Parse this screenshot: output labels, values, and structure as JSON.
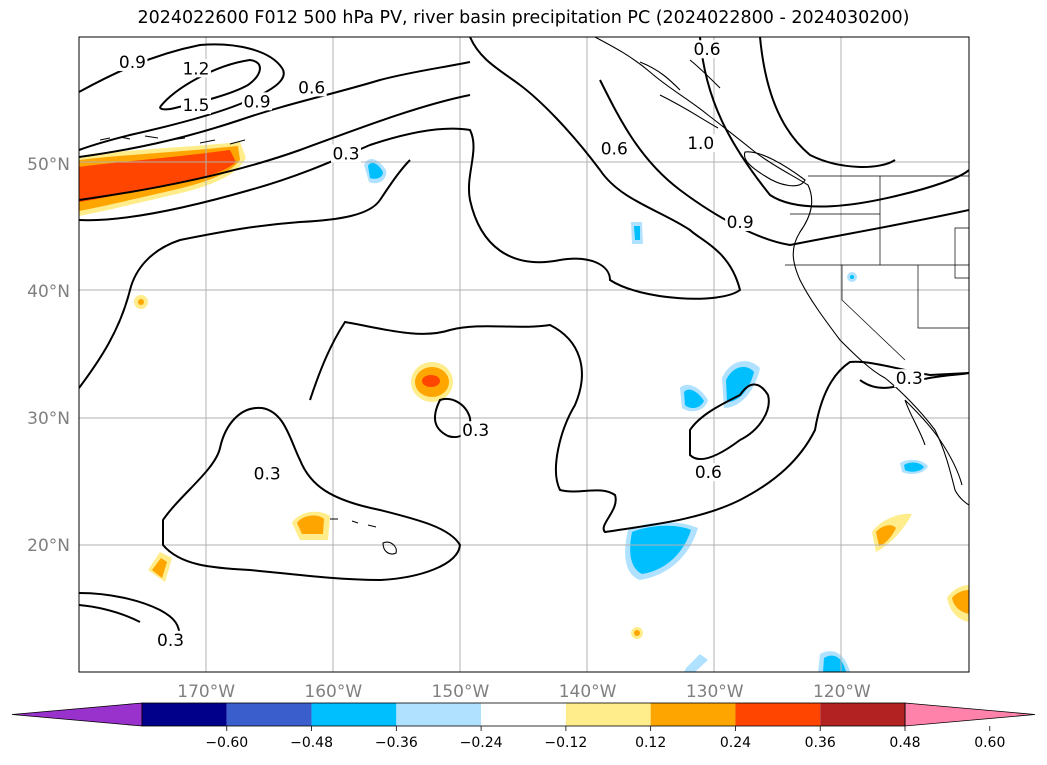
{
  "title": "2024022600 F012 500 hPa PV, river basin precipitation PC (2024022800 - 2024030200)",
  "map": {
    "lon_ticks": [
      {
        "lon": -170,
        "label": "170°W"
      },
      {
        "lon": -160,
        "label": "160°W"
      },
      {
        "lon": -150,
        "label": "150°W"
      },
      {
        "lon": -140,
        "label": "140°W"
      },
      {
        "lon": -130,
        "label": "130°W"
      },
      {
        "lon": -120,
        "label": "120°W"
      }
    ],
    "lat_ticks": [
      {
        "lat": 50,
        "label": "50°N"
      },
      {
        "lat": 40,
        "label": "40°N"
      },
      {
        "lat": 30,
        "label": "30°N"
      },
      {
        "lat": 20,
        "label": "20°N"
      }
    ],
    "contour_labels": [
      {
        "text": "0.9",
        "lon": -175.8,
        "lat": 57.8
      },
      {
        "text": "1.2",
        "lon": -170.8,
        "lat": 57.3
      },
      {
        "text": "1.5",
        "lon": -170.8,
        "lat": 54.4
      },
      {
        "text": "0.9",
        "lon": -166.0,
        "lat": 54.7
      },
      {
        "text": "0.6",
        "lon": -161.7,
        "lat": 55.8
      },
      {
        "text": "0.3",
        "lon": -159.0,
        "lat": 50.6
      },
      {
        "text": "0.6",
        "lon": -130.6,
        "lat": 58.8
      },
      {
        "text": "0.6",
        "lon": -137.9,
        "lat": 51.0
      },
      {
        "text": "1.0",
        "lon": -131.1,
        "lat": 51.4
      },
      {
        "text": "0.9",
        "lon": -128.0,
        "lat": 45.2
      },
      {
        "text": "0.3",
        "lon": -114.7,
        "lat": 32.9
      },
      {
        "text": "0.3",
        "lon": -148.8,
        "lat": 28.8
      },
      {
        "text": "0.6",
        "lon": -130.5,
        "lat": 25.5
      },
      {
        "text": "0.3",
        "lon": -165.2,
        "lat": 25.4
      },
      {
        "text": "0.3",
        "lon": -172.8,
        "lat": 12.3
      }
    ]
  },
  "colorbar": {
    "colors": [
      "#9932cc",
      "#00008b",
      "#3a5fcd",
      "#00bfff",
      "#b0e2ff",
      "#ffffff",
      "#ffec8b",
      "#ffa500",
      "#ff4500",
      "#b22222",
      "#ff82ab"
    ],
    "tick_labels": [
      "−0.60",
      "−0.48",
      "−0.36",
      "−0.24",
      "−0.12",
      "0.12",
      "0.24",
      "0.36",
      "0.48",
      "0.60"
    ]
  }
}
